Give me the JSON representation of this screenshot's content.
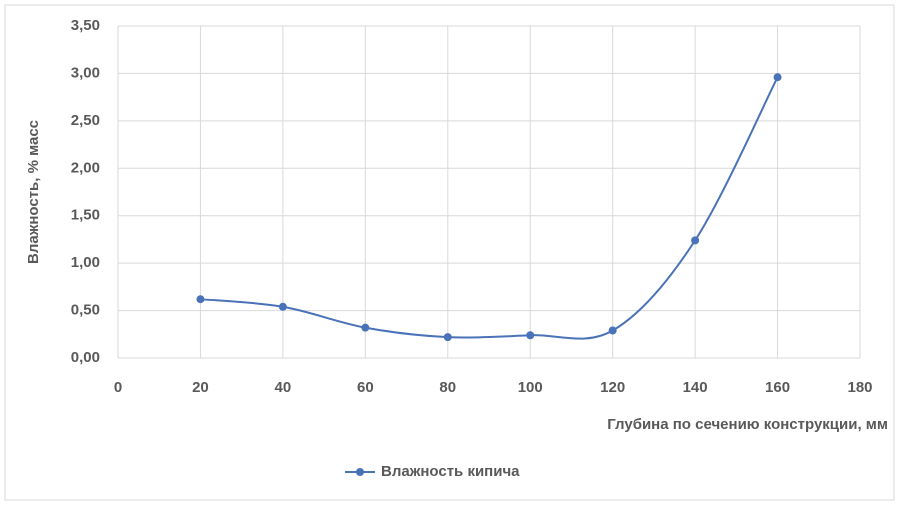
{
  "chart_data": {
    "type": "line",
    "x_label": "Глубина по сечению конструкции, мм",
    "y_label": "Влажность, % масс",
    "x": [
      20,
      40,
      60,
      80,
      100,
      120,
      140,
      160
    ],
    "series": [
      {
        "name": "Влажность кипича",
        "color": "#4a72b8",
        "values": [
          0.62,
          0.54,
          0.32,
          0.22,
          0.24,
          0.29,
          1.24,
          2.96
        ]
      }
    ],
    "xlim": [
      0,
      180
    ],
    "xticks": [
      0,
      20,
      40,
      60,
      80,
      100,
      120,
      140,
      160,
      180
    ],
    "ylim": [
      0,
      3.5
    ],
    "yticks": [
      {
        "value": 0,
        "label": "0,00"
      },
      {
        "value": 0.5,
        "label": "0,50"
      },
      {
        "value": 1,
        "label": "1,00"
      },
      {
        "value": 1.5,
        "label": "1,50"
      },
      {
        "value": 2,
        "label": "2,00"
      },
      {
        "value": 2.5,
        "label": "2,50"
      },
      {
        "value": 3,
        "label": "3,00"
      },
      {
        "value": 3.5,
        "label": "3,50"
      }
    ],
    "grid": true,
    "smooth": true,
    "legend": "bottom"
  }
}
